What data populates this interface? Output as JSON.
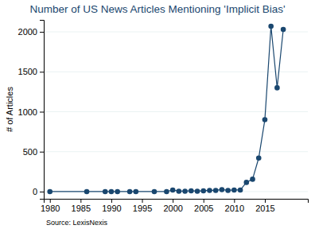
{
  "chart_data": {
    "type": "line",
    "title": "Number of US News Articles Mentioning 'Implicit Bias'",
    "y_label": "# of Articles",
    "note": "Source: LexisNexis",
    "x": [
      1980,
      1986,
      1989,
      1990,
      1991,
      1993,
      1994,
      1997,
      1999,
      2000,
      2001,
      2002,
      2003,
      2004,
      2005,
      2006,
      2007,
      2008,
      2009,
      2010,
      2011,
      2012,
      2013,
      2014,
      2015,
      2016,
      2017,
      2018
    ],
    "values": [
      0,
      0,
      0,
      0,
      0,
      0,
      0,
      0,
      0,
      20,
      5,
      5,
      10,
      5,
      10,
      15,
      15,
      25,
      15,
      20,
      20,
      115,
      155,
      420,
      900,
      2070,
      1300,
      2030
    ],
    "color": "#1a476f",
    "marker": "circle",
    "line_style": "solid",
    "xlim": [
      1979,
      2022
    ],
    "xticks": [
      1980,
      1985,
      1990,
      1995,
      2000,
      2005,
      2010,
      2015
    ],
    "ylim": [
      -90,
      2150
    ],
    "yticks": [
      0,
      500,
      1000,
      1500,
      2000
    ],
    "grid": true
  }
}
